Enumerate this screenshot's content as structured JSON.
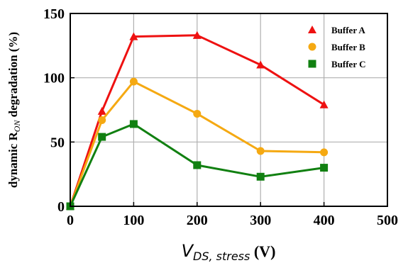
{
  "chart_data": {
    "type": "line",
    "ylabel": "dynamic R",
    "ylabel_sub": "ON",
    "ylabel_suffix": " degradation (%)",
    "xlabel": "V",
    "xlabel_sub": "DS, stress",
    "xlabel_suffix": " (V)",
    "xlim": [
      0,
      500
    ],
    "ylim": [
      0,
      150
    ],
    "x_ticks": [
      0,
      100,
      200,
      300,
      400,
      500
    ],
    "y_ticks": [
      0,
      50,
      100,
      150
    ],
    "grid": true,
    "legend_position": "top-right",
    "series": [
      {
        "name": "Buffer A",
        "color": "#ee1111",
        "marker": "triangle",
        "x": [
          0,
          50,
          100,
          200,
          300,
          400
        ],
        "y": [
          0,
          74,
          132,
          133,
          110,
          79
        ]
      },
      {
        "name": "Buffer B",
        "color": "#f5a912",
        "marker": "circle",
        "x": [
          0,
          50,
          100,
          200,
          300,
          400
        ],
        "y": [
          0,
          67,
          97,
          72,
          43,
          42
        ]
      },
      {
        "name": "Buffer C",
        "color": "#118011",
        "marker": "square",
        "x": [
          0,
          50,
          100,
          200,
          300,
          400
        ],
        "y": [
          0,
          54,
          64,
          32,
          23,
          30
        ]
      }
    ]
  }
}
